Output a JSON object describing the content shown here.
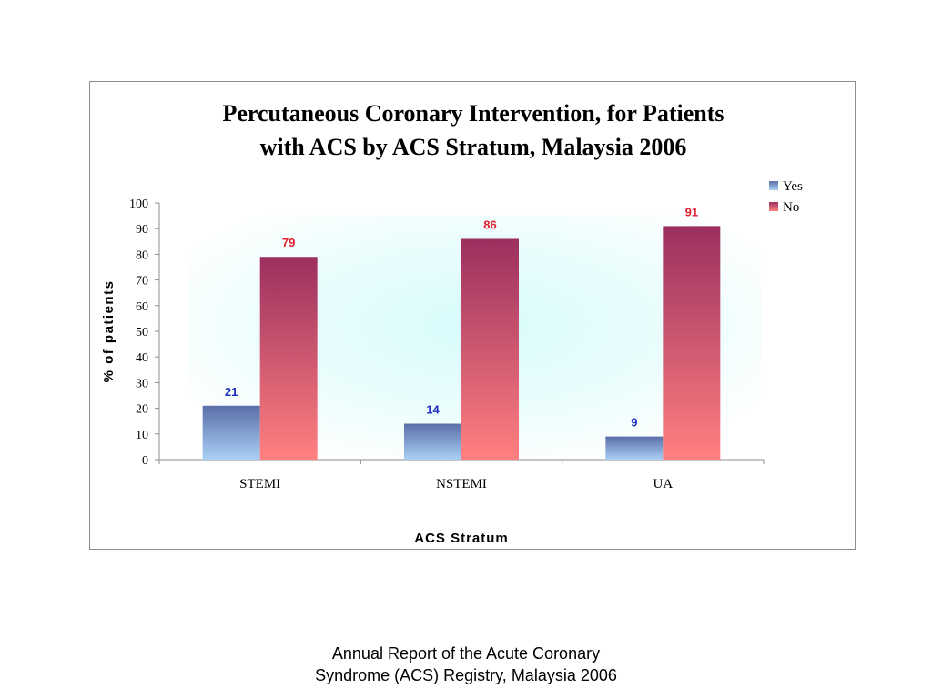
{
  "chart_data": {
    "type": "bar",
    "title_lines": [
      "Percutaneous Coronary Intervention, for Patients",
      "with ACS by ACS Stratum, Malaysia 2006"
    ],
    "xlabel": "ACS Stratum",
    "ylabel": "% of patients",
    "categories": [
      "STEMI",
      "NSTEMI",
      "UA"
    ],
    "series": [
      {
        "name": "Yes",
        "values": [
          21,
          14,
          9
        ],
        "color": "#5b6ea8",
        "label_color": "#1f2fbf"
      },
      {
        "name": "No",
        "values": [
          79,
          86,
          91
        ],
        "color": "#9b2f5f",
        "label_color": "#e01f2f"
      }
    ],
    "ylim": [
      0,
      100
    ],
    "yticks": [
      0,
      10,
      20,
      30,
      40,
      50,
      60,
      70,
      80,
      90,
      100
    ],
    "legend_position": "top-right",
    "grid": false
  },
  "footer": {
    "lines": [
      "Annual Report of the Acute Coronary",
      "Syndrome (ACS) Registry, Malaysia 2006"
    ]
  }
}
